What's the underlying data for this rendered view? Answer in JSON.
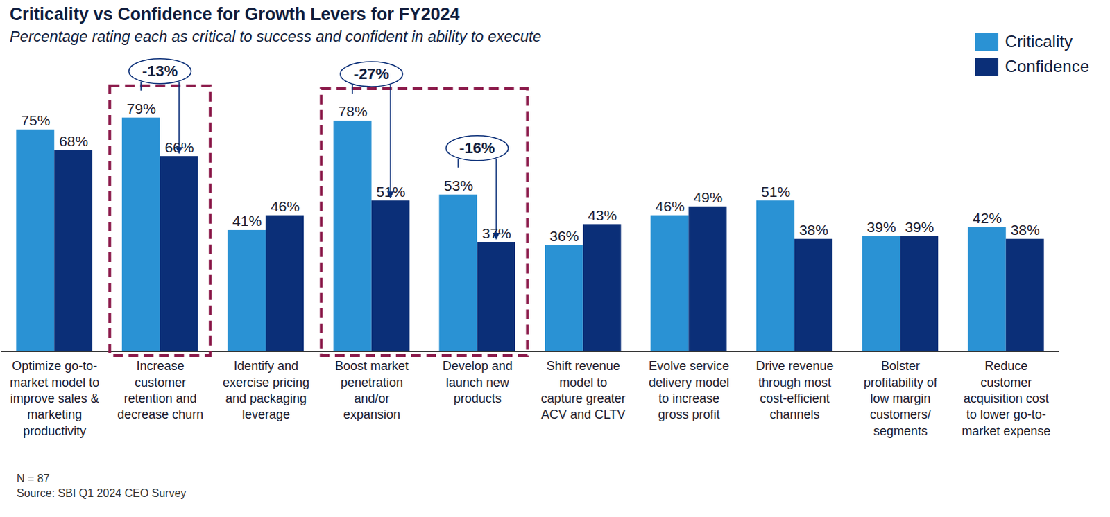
{
  "chart_data": {
    "type": "bar",
    "title": "Criticality vs Confidence for Growth Levers for FY2024",
    "subtitle": "Percentage rating each as critical to success and confident in ability to execute",
    "categories": [
      "Optimize go-to-market model to improve sales & marketing productivity",
      "Increase customer retention and decrease churn",
      "Identify and exercise pricing and packaging leverage",
      "Boost market penetration and/or expansion",
      "Develop and launch new products",
      "Shift revenue model to capture greater ACV and CLTV",
      "Evolve service delivery model to increase gross profit",
      "Drive revenue through most cost-efficient channels",
      "Bolster profitability of low margin customers/ segments",
      "Reduce customer acquisition cost to lower go-to-market expense"
    ],
    "series": [
      {
        "name": "Criticality",
        "color": "#2a92d4",
        "values": [
          75,
          79,
          41,
          78,
          53,
          36,
          46,
          51,
          39,
          42
        ],
        "value_labels": [
          "75%",
          "79%",
          "41%",
          "78%",
          "53%",
          "36%",
          "46%",
          "51%",
          "39%",
          "42%"
        ]
      },
      {
        "name": "Confidence",
        "color": "#0b2f78",
        "values": [
          68,
          66,
          46,
          51,
          37,
          43,
          49,
          38,
          39,
          38
        ],
        "value_labels": [
          "68%",
          "66%",
          "46%",
          "51%",
          "37%",
          "43%",
          "49%",
          "38%",
          "39%",
          "38%"
        ]
      }
    ],
    "annotations": [
      {
        "category": "Increase customer retention and decrease churn",
        "text": "-13%"
      },
      {
        "category": "Boost market penetration and/or expansion",
        "text": "-27%"
      },
      {
        "category": "Develop and launch new products",
        "text": "-16%"
      }
    ],
    "ylim": [
      0,
      100
    ],
    "grid": false,
    "tick_labels": "x",
    "data_labels": true,
    "legend": "top-right",
    "notes": [
      "N = 87",
      "Source: SBI Q1 2024 CEO Survey"
    ]
  }
}
